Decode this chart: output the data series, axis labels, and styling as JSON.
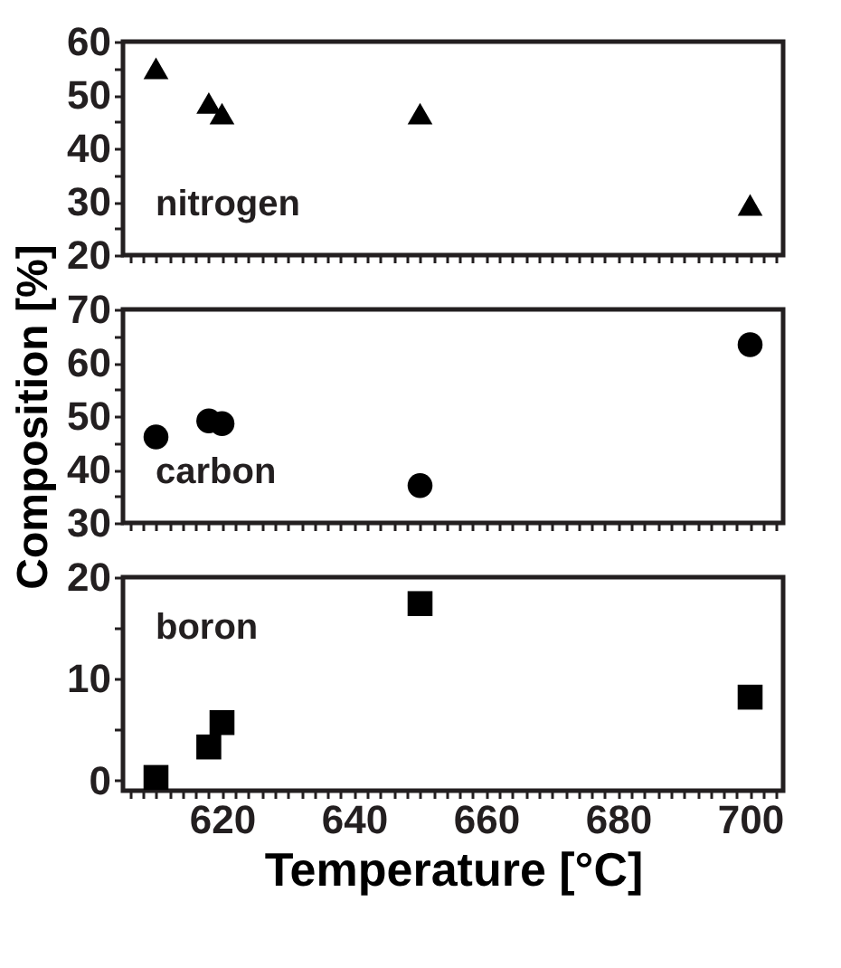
{
  "chart_data": [
    {
      "type": "scatter",
      "marker": "triangle",
      "color": "#000000",
      "x": [
        610,
        618,
        620,
        650,
        700
      ],
      "values": [
        55.0,
        48.5,
        46.5,
        46.5,
        29.4
      ],
      "xlim": [
        605,
        705
      ],
      "xticks": [
        {
          "value": 606,
          "label": null
        },
        {
          "value": 608,
          "label": null
        },
        {
          "value": 610,
          "label": null
        },
        {
          "value": 612,
          "label": null
        },
        {
          "value": 614,
          "label": null
        },
        {
          "value": 616,
          "label": null
        },
        {
          "value": 618,
          "label": null
        },
        620,
        {
          "value": 622,
          "label": null
        },
        {
          "value": 624,
          "label": null
        },
        {
          "value": 626,
          "label": null
        },
        {
          "value": 628,
          "label": null
        },
        {
          "value": 630,
          "label": null
        },
        {
          "value": 632,
          "label": null
        },
        {
          "value": 634,
          "label": null
        },
        {
          "value": 636,
          "label": null
        },
        {
          "value": 638,
          "label": null
        },
        640,
        {
          "value": 642,
          "label": null
        },
        {
          "value": 644,
          "label": null
        },
        {
          "value": 646,
          "label": null
        },
        {
          "value": 648,
          "label": null
        },
        {
          "value": 650,
          "label": null
        },
        {
          "value": 652,
          "label": null
        },
        {
          "value": 654,
          "label": null
        },
        {
          "value": 656,
          "label": null
        },
        {
          "value": 658,
          "label": null
        },
        660,
        {
          "value": 662,
          "label": null
        },
        {
          "value": 664,
          "label": null
        },
        {
          "value": 666,
          "label": null
        },
        {
          "value": 668,
          "label": null
        },
        {
          "value": 670,
          "label": null
        },
        {
          "value": 672,
          "label": null
        },
        {
          "value": 674,
          "label": null
        },
        {
          "value": 676,
          "label": null
        },
        {
          "value": 678,
          "label": null
        },
        680,
        {
          "value": 682,
          "label": null
        },
        {
          "value": 684,
          "label": null
        },
        {
          "value": 686,
          "label": null
        },
        {
          "value": 688,
          "label": null
        },
        {
          "value": 690,
          "label": null
        },
        {
          "value": 692,
          "label": null
        },
        {
          "value": 694,
          "label": null
        },
        {
          "value": 696,
          "label": null
        },
        {
          "value": 698,
          "label": null
        },
        700,
        {
          "value": 702,
          "label": null
        },
        {
          "value": 704,
          "label": null
        }
      ],
      "ylim": [
        20,
        60
      ],
      "yticks": [
        20,
        {
          "value": 25,
          "label": null
        },
        30,
        {
          "value": 35,
          "label": null
        },
        40,
        {
          "value": 45,
          "label": null
        },
        50,
        {
          "value": 55,
          "label": null
        },
        60
      ],
      "tick_labels": "y",
      "annotations": [
        "nitrogen"
      ]
    },
    {
      "type": "scatter",
      "marker": "circle",
      "color": "#000000",
      "x": [
        610,
        618,
        620,
        650,
        700
      ],
      "values": [
        46.1,
        49.1,
        48.6,
        37.0,
        63.4
      ],
      "xlim": [
        605,
        705
      ],
      "xticks": [
        {
          "value": 606,
          "label": null
        },
        {
          "value": 608,
          "label": null
        },
        {
          "value": 610,
          "label": null
        },
        {
          "value": 612,
          "label": null
        },
        {
          "value": 614,
          "label": null
        },
        {
          "value": 616,
          "label": null
        },
        {
          "value": 618,
          "label": null
        },
        620,
        {
          "value": 622,
          "label": null
        },
        {
          "value": 624,
          "label": null
        },
        {
          "value": 626,
          "label": null
        },
        {
          "value": 628,
          "label": null
        },
        {
          "value": 630,
          "label": null
        },
        {
          "value": 632,
          "label": null
        },
        {
          "value": 634,
          "label": null
        },
        {
          "value": 636,
          "label": null
        },
        {
          "value": 638,
          "label": null
        },
        640,
        {
          "value": 642,
          "label": null
        },
        {
          "value": 644,
          "label": null
        },
        {
          "value": 646,
          "label": null
        },
        {
          "value": 648,
          "label": null
        },
        {
          "value": 650,
          "label": null
        },
        {
          "value": 652,
          "label": null
        },
        {
          "value": 654,
          "label": null
        },
        {
          "value": 656,
          "label": null
        },
        {
          "value": 658,
          "label": null
        },
        660,
        {
          "value": 662,
          "label": null
        },
        {
          "value": 664,
          "label": null
        },
        {
          "value": 666,
          "label": null
        },
        {
          "value": 668,
          "label": null
        },
        {
          "value": 670,
          "label": null
        },
        {
          "value": 672,
          "label": null
        },
        {
          "value": 674,
          "label": null
        },
        {
          "value": 676,
          "label": null
        },
        {
          "value": 678,
          "label": null
        },
        680,
        {
          "value": 682,
          "label": null
        },
        {
          "value": 684,
          "label": null
        },
        {
          "value": 686,
          "label": null
        },
        {
          "value": 688,
          "label": null
        },
        {
          "value": 690,
          "label": null
        },
        {
          "value": 692,
          "label": null
        },
        {
          "value": 694,
          "label": null
        },
        {
          "value": 696,
          "label": null
        },
        {
          "value": 698,
          "label": null
        },
        700,
        {
          "value": 702,
          "label": null
        },
        {
          "value": 704,
          "label": null
        }
      ],
      "ylim": [
        30,
        70
      ],
      "yticks": [
        30,
        {
          "value": 35,
          "label": null
        },
        40,
        {
          "value": 45,
          "label": null
        },
        50,
        {
          "value": 55,
          "label": null
        },
        60,
        {
          "value": 65,
          "label": null
        },
        70
      ],
      "tick_labels": "y",
      "ylabel": "Composition [%]",
      "annotations": [
        "carbon"
      ]
    },
    {
      "type": "scatter",
      "marker": "square",
      "color": "#000000",
      "x": [
        610,
        618,
        620,
        650,
        700
      ],
      "values": [
        0.3,
        3.3,
        5.7,
        17.4,
        8.2
      ],
      "xlim": [
        605,
        705
      ],
      "xticks": [
        {
          "value": 606,
          "label": null
        },
        {
          "value": 608,
          "label": null
        },
        {
          "value": 610,
          "label": null
        },
        {
          "value": 612,
          "label": null
        },
        {
          "value": 614,
          "label": null
        },
        {
          "value": 616,
          "label": null
        },
        {
          "value": 618,
          "label": null
        },
        620,
        {
          "value": 622,
          "label": null
        },
        {
          "value": 624,
          "label": null
        },
        {
          "value": 626,
          "label": null
        },
        {
          "value": 628,
          "label": null
        },
        {
          "value": 630,
          "label": null
        },
        {
          "value": 632,
          "label": null
        },
        {
          "value": 634,
          "label": null
        },
        {
          "value": 636,
          "label": null
        },
        {
          "value": 638,
          "label": null
        },
        640,
        {
          "value": 642,
          "label": null
        },
        {
          "value": 644,
          "label": null
        },
        {
          "value": 646,
          "label": null
        },
        {
          "value": 648,
          "label": null
        },
        {
          "value": 650,
          "label": null
        },
        {
          "value": 652,
          "label": null
        },
        {
          "value": 654,
          "label": null
        },
        {
          "value": 656,
          "label": null
        },
        {
          "value": 658,
          "label": null
        },
        660,
        {
          "value": 662,
          "label": null
        },
        {
          "value": 664,
          "label": null
        },
        {
          "value": 666,
          "label": null
        },
        {
          "value": 668,
          "label": null
        },
        {
          "value": 670,
          "label": null
        },
        {
          "value": 672,
          "label": null
        },
        {
          "value": 674,
          "label": null
        },
        {
          "value": 676,
          "label": null
        },
        {
          "value": 678,
          "label": null
        },
        680,
        {
          "value": 682,
          "label": null
        },
        {
          "value": 684,
          "label": null
        },
        {
          "value": 686,
          "label": null
        },
        {
          "value": 688,
          "label": null
        },
        {
          "value": 690,
          "label": null
        },
        {
          "value": 692,
          "label": null
        },
        {
          "value": 694,
          "label": null
        },
        {
          "value": 696,
          "label": null
        },
        {
          "value": 698,
          "label": null
        },
        700,
        {
          "value": 702,
          "label": null
        },
        {
          "value": 704,
          "label": null
        }
      ],
      "ylim": [
        -1,
        20
      ],
      "yticks": [
        0,
        {
          "value": 5,
          "label": null
        },
        10,
        {
          "value": 15,
          "label": null
        },
        20
      ],
      "xlabel": "Temperature [°C]",
      "annotations": [
        "boron"
      ]
    }
  ]
}
